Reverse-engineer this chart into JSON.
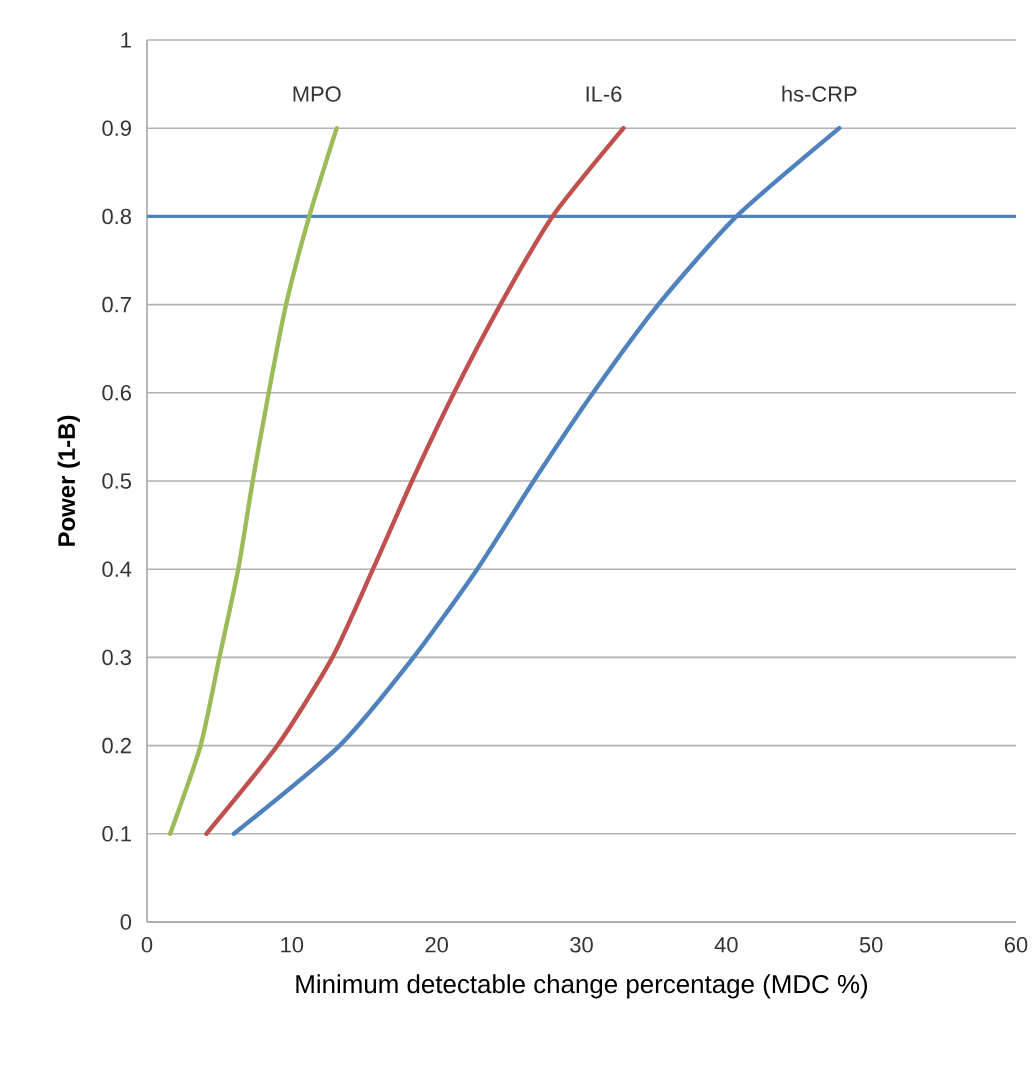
{
  "chart_data": {
    "type": "line",
    "xlabel": "Minimum detectable change percentage   (MDC %)",
    "ylabel": "Power (1-B)",
    "xlim": [
      0,
      60
    ],
    "xticks": [
      0,
      10,
      20,
      30,
      40,
      50,
      60
    ],
    "ylim": [
      0,
      1
    ],
    "yticks": [
      0,
      0.1,
      0.2,
      0.3,
      0.4,
      0.5,
      0.6,
      0.7,
      0.8,
      0.9,
      1
    ],
    "grid": "y",
    "legend": false,
    "marker": "none",
    "line_style": "solid",
    "series": [
      {
        "name": "MPO",
        "color": "#9bbb59",
        "x": [
          1.6,
          3.7,
          5.0,
          6.3,
          7.3,
          8.4,
          9.6,
          11.2,
          13.1
        ],
        "values": [
          0.1,
          0.2,
          0.3,
          0.4,
          0.5,
          0.6,
          0.7,
          0.8,
          0.9
        ]
      },
      {
        "name": "IL-6",
        "color": "#c0504d",
        "x": [
          4.1,
          9.0,
          12.8,
          15.6,
          18.3,
          21.2,
          24.4,
          28.0,
          32.9
        ],
        "values": [
          0.1,
          0.2,
          0.3,
          0.4,
          0.5,
          0.6,
          0.7,
          0.8,
          0.9
        ]
      },
      {
        "name": "hs-CRP",
        "color": "#4f81bd",
        "x": [
          6.0,
          13.3,
          18.4,
          22.8,
          26.7,
          30.8,
          35.3,
          40.7,
          47.8
        ],
        "values": [
          0.1,
          0.2,
          0.3,
          0.4,
          0.5,
          0.6,
          0.7,
          0.8,
          0.9
        ]
      }
    ],
    "ref_lines": [
      {
        "axis": "y",
        "value": 0.8,
        "color": "#4f81bd"
      }
    ]
  }
}
